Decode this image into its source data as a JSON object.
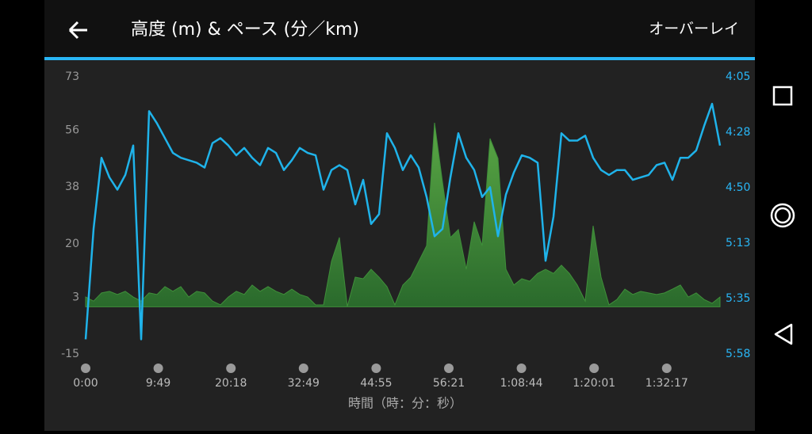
{
  "header": {
    "title": "高度 (m) & ペース (分／km)",
    "action": "オーバーレイ"
  },
  "chart_data": {
    "type": "line",
    "x_label": "時間（時：分：秒）",
    "xtick_labels": [
      "0:00",
      "9:49",
      "20:18",
      "32:49",
      "44:55",
      "56:21",
      "1:08:44",
      "1:20:01",
      "1:32:17"
    ],
    "ylim": [
      -15,
      73
    ],
    "yticks": [
      73,
      56,
      38,
      20,
      3,
      -15
    ],
    "y2lim": [
      358,
      245
    ],
    "y2ticks": [
      {
        "value": 245,
        "label": "4:05"
      },
      {
        "value": 267.6,
        "label": "4:28"
      },
      {
        "value": 290.2,
        "label": "4:50"
      },
      {
        "value": 312.8,
        "label": "5:13"
      },
      {
        "value": 335.4,
        "label": "5:35"
      },
      {
        "value": 358,
        "label": "5:58"
      }
    ],
    "series": [
      {
        "type": "area",
        "color": "#3f8f3a",
        "values": [
          3.1,
          1.8,
          4.4,
          4.9,
          3.9,
          4.9,
          3.1,
          1.8,
          4.4,
          3.9,
          6.4,
          4.9,
          6.4,
          3.1,
          4.9,
          4.4,
          1.8,
          0.6,
          3.1,
          4.9,
          3.9,
          6.9,
          4.9,
          6.4,
          4.9,
          3.9,
          5.6,
          3.9,
          3.1,
          0.6,
          0.6,
          14.4,
          22.0,
          0.1,
          9.4,
          8.9,
          11.9,
          9.4,
          6.4,
          0.6,
          6.9,
          9.4,
          14.4,
          19.4,
          58.4,
          39.6,
          22.0,
          24.5,
          11.9,
          27.0,
          19.4,
          53.4,
          47.1,
          11.9,
          6.9,
          8.9,
          8.1,
          10.6,
          11.9,
          10.6,
          13.2,
          10.6,
          6.9,
          1.8,
          25.7,
          9.4,
          0.6,
          2.3,
          5.6,
          3.9,
          4.9,
          4.4,
          3.9,
          4.4,
          5.6,
          6.9,
          3.1,
          4.4,
          2.3,
          1.1,
          3.1
        ]
      },
      {
        "type": "line",
        "color": "#1fb3ea",
        "axis": "y2",
        "values": [
          352,
          307,
          278,
          286,
          291,
          285,
          273,
          352,
          259,
          264,
          270,
          276,
          278,
          279,
          280,
          282,
          272,
          270,
          273,
          277,
          274,
          278,
          281,
          274,
          276,
          283,
          279,
          274,
          276,
          277,
          291,
          283,
          281,
          283,
          297,
          287,
          305,
          301,
          268,
          274,
          283,
          277,
          282,
          294,
          310,
          307,
          286,
          268,
          278,
          283,
          294,
          290,
          310,
          293,
          284,
          277,
          278,
          280,
          320,
          302,
          268,
          271,
          271,
          269,
          278,
          283,
          285,
          283,
          283,
          287,
          286,
          285,
          281,
          280,
          287,
          278,
          278,
          275,
          265,
          256,
          273
        ]
      }
    ]
  }
}
